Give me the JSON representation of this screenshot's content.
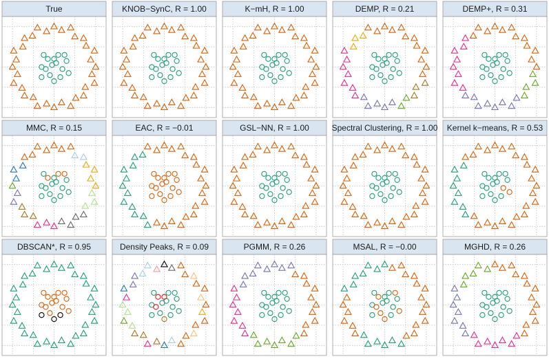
{
  "chart_data": {
    "type": "scatter",
    "xlim": [
      -1.25,
      1.25
    ],
    "ylim": [
      -1.25,
      1.25
    ],
    "xticks": [
      -1,
      -0.5,
      0,
      0.5,
      1
    ],
    "yticks": [
      -1,
      -0.5,
      0,
      0.5,
      1
    ],
    "grid": true,
    "x": [
      1.0,
      0.88,
      0.97,
      0.77,
      0.71,
      0.5,
      0.4,
      0.18,
      0,
      -0.18,
      -0.4,
      -0.52,
      -0.71,
      -0.75,
      -0.97,
      -0.91,
      -1.0,
      -0.88,
      -0.97,
      -0.77,
      -0.71,
      -0.5,
      -0.4,
      -0.18,
      0,
      0.18,
      0.4,
      0.52,
      0.71,
      0.75,
      0.97,
      0.91,
      0.05,
      -0.15,
      0.2,
      -0.1,
      0.3,
      -0.3,
      0.0,
      0.1,
      -0.2,
      0.15,
      -0.05,
      0.25,
      -0.25,
      0.35,
      -0.3,
      0.0
    ],
    "y": [
      0,
      0.18,
      0.4,
      0.52,
      0.71,
      0.75,
      0.97,
      0.91,
      1.0,
      0.88,
      0.97,
      0.77,
      0.71,
      0.5,
      0.4,
      0.18,
      0,
      -0.18,
      -0.4,
      -0.52,
      -0.71,
      -0.75,
      -0.97,
      -0.91,
      -1.0,
      -0.88,
      -0.97,
      -0.77,
      -0.71,
      -0.5,
      -0.4,
      -0.18,
      0.1,
      0.2,
      -0.05,
      -0.2,
      0.15,
      0.0,
      -0.35,
      0.3,
      -0.05,
      -0.25,
      0.05,
      0.3,
      0.3,
      -0.15,
      -0.25,
      0.2
    ],
    "markers": [
      "triangle",
      "circle"
    ],
    "marker_index": [
      0,
      0,
      0,
      0,
      0,
      0,
      0,
      0,
      0,
      0,
      0,
      0,
      0,
      0,
      0,
      0,
      0,
      0,
      0,
      0,
      0,
      0,
      0,
      0,
      0,
      0,
      0,
      0,
      0,
      0,
      0,
      0,
      1,
      1,
      1,
      1,
      1,
      1,
      1,
      1,
      1,
      1,
      1,
      1,
      1,
      1,
      1,
      1
    ],
    "palette": [
      "#d95f02",
      "#1b9e77",
      "#7570b3",
      "#e7298a",
      "#66a61e",
      "#e6ab02",
      "#a6761d",
      "#666666",
      "#000000",
      "#e41a1c",
      "#a6cee3",
      "#1f78b4",
      "#b2df8a",
      "#fb9a99",
      "#fdbf6f"
    ],
    "panels": [
      {
        "title": "True",
        "labels": [
          0,
          0,
          0,
          0,
          0,
          0,
          0,
          0,
          0,
          0,
          0,
          0,
          0,
          0,
          0,
          0,
          0,
          0,
          0,
          0,
          0,
          0,
          0,
          0,
          0,
          0,
          0,
          0,
          0,
          0,
          0,
          0,
          1,
          1,
          1,
          1,
          1,
          1,
          1,
          1,
          1,
          1,
          1,
          1,
          1,
          1,
          1,
          1
        ]
      },
      {
        "title": "KNOB−SynC, R = 1.00",
        "labels": [
          0,
          0,
          0,
          0,
          0,
          0,
          0,
          0,
          0,
          0,
          0,
          0,
          0,
          0,
          0,
          0,
          0,
          0,
          0,
          0,
          0,
          0,
          0,
          0,
          0,
          0,
          0,
          0,
          0,
          0,
          0,
          0,
          1,
          1,
          1,
          1,
          1,
          1,
          1,
          1,
          1,
          1,
          1,
          1,
          1,
          1,
          1,
          1
        ]
      },
      {
        "title": "K−mH, R = 1.00",
        "labels": [
          0,
          0,
          0,
          0,
          0,
          0,
          0,
          0,
          0,
          0,
          0,
          0,
          0,
          0,
          0,
          0,
          0,
          0,
          0,
          0,
          0,
          0,
          0,
          0,
          0,
          0,
          0,
          0,
          0,
          0,
          0,
          0,
          1,
          1,
          1,
          1,
          1,
          1,
          1,
          1,
          1,
          1,
          1,
          1,
          1,
          1,
          1,
          1
        ]
      },
      {
        "title": "DEMP, R = 0.21",
        "labels": [
          0,
          0,
          0,
          0,
          0,
          0,
          0,
          0,
          0,
          0,
          0,
          5,
          5,
          5,
          3,
          3,
          3,
          3,
          3,
          3,
          3,
          2,
          2,
          2,
          2,
          2,
          4,
          4,
          6,
          6,
          6,
          0,
          1,
          1,
          1,
          1,
          1,
          1,
          1,
          1,
          1,
          1,
          1,
          1,
          1,
          1,
          1,
          1
        ]
      },
      {
        "title": "DEMP+, R = 0.31",
        "labels": [
          0,
          0,
          0,
          0,
          0,
          0,
          0,
          0,
          0,
          0,
          0,
          0,
          3,
          3,
          3,
          3,
          3,
          3,
          3,
          3,
          2,
          2,
          2,
          2,
          2,
          2,
          2,
          2,
          4,
          4,
          4,
          4,
          1,
          1,
          1,
          1,
          1,
          1,
          1,
          1,
          1,
          1,
          1,
          1,
          1,
          1,
          1,
          1
        ]
      },
      {
        "title": "MMC, R = 0.15",
        "labels": [
          5,
          5,
          5,
          5,
          10,
          10,
          0,
          0,
          0,
          0,
          0,
          0,
          0,
          11,
          11,
          11,
          4,
          2,
          2,
          6,
          6,
          6,
          3,
          3,
          3,
          7,
          7,
          7,
          7,
          12,
          12,
          12,
          1,
          0,
          1,
          1,
          1,
          1,
          1,
          0,
          1,
          1,
          1,
          0,
          1,
          1,
          1,
          1
        ]
      },
      {
        "title": "EAC, R = −0.01",
        "labels": [
          0,
          0,
          0,
          0,
          0,
          0,
          0,
          0,
          0,
          0,
          0,
          1,
          1,
          1,
          1,
          1,
          1,
          1,
          1,
          1,
          1,
          1,
          1,
          0,
          0,
          0,
          0,
          0,
          0,
          0,
          0,
          0,
          0,
          0,
          0,
          0,
          0,
          0,
          0,
          0,
          0,
          0,
          0,
          0,
          0,
          0,
          0,
          0
        ]
      },
      {
        "title": "GSL−NN, R = 1.00",
        "labels": [
          0,
          0,
          0,
          0,
          0,
          0,
          0,
          0,
          0,
          0,
          0,
          0,
          0,
          0,
          0,
          0,
          0,
          0,
          0,
          0,
          0,
          0,
          0,
          0,
          0,
          0,
          0,
          0,
          0,
          0,
          0,
          0,
          1,
          1,
          1,
          1,
          1,
          1,
          1,
          1,
          1,
          1,
          1,
          1,
          1,
          1,
          1,
          1
        ]
      },
      {
        "title": "Spectral Clustering, R = 1.00",
        "labels": [
          0,
          0,
          0,
          0,
          0,
          0,
          0,
          0,
          0,
          0,
          0,
          0,
          0,
          0,
          0,
          0,
          0,
          0,
          0,
          0,
          0,
          0,
          0,
          0,
          0,
          0,
          0,
          0,
          0,
          0,
          0,
          0,
          1,
          1,
          1,
          1,
          1,
          1,
          1,
          1,
          1,
          1,
          1,
          1,
          1,
          1,
          1,
          1
        ]
      },
      {
        "title": "Kernel k−means, R = 0.53",
        "labels": [
          0,
          0,
          0,
          0,
          0,
          0,
          0,
          0,
          0,
          0,
          0,
          0,
          0,
          1,
          1,
          1,
          1,
          1,
          1,
          1,
          1,
          0,
          0,
          0,
          0,
          0,
          0,
          0,
          0,
          0,
          0,
          0,
          1,
          1,
          0,
          1,
          1,
          1,
          1,
          1,
          1,
          1,
          1,
          1,
          1,
          0,
          1,
          1
        ]
      },
      {
        "title": "DBSCAN*, R = 0.95",
        "labels": [
          1,
          1,
          1,
          1,
          1,
          1,
          1,
          1,
          1,
          1,
          1,
          1,
          1,
          1,
          1,
          1,
          1,
          1,
          1,
          1,
          1,
          1,
          1,
          1,
          1,
          1,
          1,
          1,
          1,
          1,
          1,
          1,
          0,
          0,
          0,
          0,
          0,
          0,
          8,
          0,
          0,
          8,
          0,
          0,
          0,
          0,
          8,
          0
        ]
      },
      {
        "title": "Density Peaks, R = 0.09",
        "labels": [
          0,
          14,
          0,
          0,
          14,
          0,
          0,
          7,
          8,
          13,
          10,
          10,
          2,
          2,
          11,
          3,
          12,
          12,
          4,
          12,
          6,
          6,
          3,
          6,
          11,
          10,
          0,
          0,
          14,
          0,
          0,
          5,
          1,
          9,
          1,
          1,
          1,
          1,
          6,
          1,
          9,
          1,
          1,
          1,
          1,
          1,
          1,
          9
        ]
      },
      {
        "title": "PGMM, R = 0.26",
        "labels": [
          0,
          0,
          0,
          0,
          0,
          0,
          2,
          2,
          2,
          2,
          2,
          2,
          2,
          2,
          3,
          3,
          3,
          3,
          3,
          3,
          3,
          4,
          4,
          4,
          4,
          4,
          4,
          4,
          0,
          0,
          0,
          0,
          1,
          1,
          1,
          1,
          1,
          1,
          1,
          1,
          1,
          1,
          1,
          1,
          1,
          1,
          1,
          1
        ]
      },
      {
        "title": "MSAL, R = −0.00",
        "labels": [
          0,
          0,
          0,
          0,
          0,
          0,
          0,
          0,
          1,
          1,
          1,
          1,
          1,
          1,
          1,
          0,
          0,
          0,
          0,
          0,
          0,
          1,
          1,
          1,
          1,
          1,
          1,
          0,
          0,
          0,
          0,
          0,
          1,
          0,
          1,
          0,
          1,
          1,
          0,
          1,
          0,
          1,
          1,
          0,
          1,
          0,
          1,
          1
        ]
      },
      {
        "title": "MGHD, R = 0.26",
        "labels": [
          0,
          0,
          0,
          0,
          0,
          0,
          0,
          0,
          0,
          4,
          4,
          4,
          4,
          4,
          2,
          2,
          2,
          2,
          2,
          2,
          2,
          3,
          3,
          3,
          3,
          3,
          3,
          3,
          0,
          0,
          0,
          0,
          1,
          1,
          1,
          1,
          1,
          1,
          1,
          1,
          1,
          1,
          1,
          1,
          1,
          1,
          1,
          1
        ]
      }
    ]
  }
}
